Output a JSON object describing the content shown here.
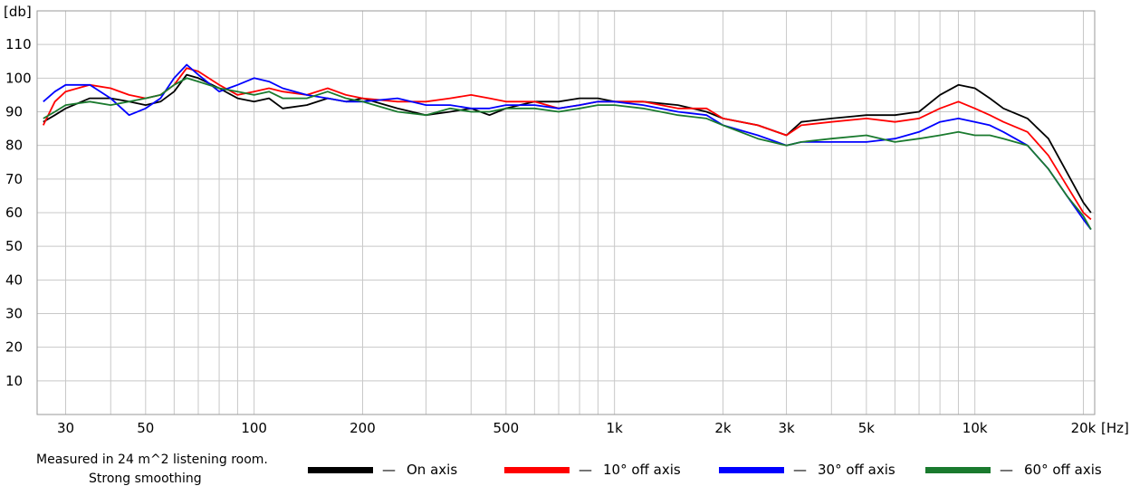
{
  "chart_data": {
    "type": "line",
    "x_scale": "log",
    "xlim": [
      25,
      21500
    ],
    "ylim": [
      0,
      120
    ],
    "xlabel": "[Hz]",
    "ylabel": "[db]",
    "grid": true,
    "legend_position": "bottom",
    "y_ticks": [
      10,
      20,
      30,
      40,
      50,
      60,
      70,
      80,
      90,
      100,
      110
    ],
    "x_ticks": [
      {
        "value": 30,
        "label": "30"
      },
      {
        "value": 50,
        "label": "50"
      },
      {
        "value": 100,
        "label": "100"
      },
      {
        "value": 200,
        "label": "200"
      },
      {
        "value": 500,
        "label": "500"
      },
      {
        "value": 1000,
        "label": "1k"
      },
      {
        "value": 2000,
        "label": "2k"
      },
      {
        "value": 3000,
        "label": "3k"
      },
      {
        "value": 5000,
        "label": "5k"
      },
      {
        "value": 10000,
        "label": "10k"
      },
      {
        "value": 20000,
        "label": "20k"
      }
    ],
    "series": [
      {
        "name": "On axis",
        "color": "#000000",
        "points": [
          [
            26,
            87
          ],
          [
            28,
            89
          ],
          [
            30,
            91
          ],
          [
            35,
            94
          ],
          [
            40,
            94
          ],
          [
            45,
            93
          ],
          [
            50,
            92
          ],
          [
            55,
            93
          ],
          [
            60,
            96
          ],
          [
            65,
            101
          ],
          [
            70,
            100
          ],
          [
            80,
            97
          ],
          [
            90,
            94
          ],
          [
            100,
            93
          ],
          [
            110,
            94
          ],
          [
            120,
            91
          ],
          [
            140,
            92
          ],
          [
            160,
            94
          ],
          [
            180,
            93
          ],
          [
            200,
            94
          ],
          [
            250,
            91
          ],
          [
            300,
            89
          ],
          [
            350,
            90
          ],
          [
            400,
            91
          ],
          [
            450,
            89
          ],
          [
            500,
            91
          ],
          [
            600,
            93
          ],
          [
            700,
            93
          ],
          [
            800,
            94
          ],
          [
            900,
            94
          ],
          [
            1000,
            93
          ],
          [
            1200,
            93
          ],
          [
            1500,
            92
          ],
          [
            1800,
            90
          ],
          [
            2000,
            88
          ],
          [
            2500,
            86
          ],
          [
            3000,
            83
          ],
          [
            3300,
            87
          ],
          [
            4000,
            88
          ],
          [
            5000,
            89
          ],
          [
            6000,
            89
          ],
          [
            7000,
            90
          ],
          [
            8000,
            95
          ],
          [
            9000,
            98
          ],
          [
            10000,
            97
          ],
          [
            11000,
            94
          ],
          [
            12000,
            91
          ],
          [
            14000,
            88
          ],
          [
            16000,
            82
          ],
          [
            18000,
            72
          ],
          [
            20000,
            63
          ],
          [
            21000,
            60
          ]
        ]
      },
      {
        "name": "10° off axis",
        "color": "#ff0000",
        "points": [
          [
            26,
            86
          ],
          [
            28,
            93
          ],
          [
            30,
            96
          ],
          [
            35,
            98
          ],
          [
            40,
            97
          ],
          [
            45,
            95
          ],
          [
            50,
            94
          ],
          [
            55,
            95
          ],
          [
            60,
            98
          ],
          [
            65,
            103
          ],
          [
            70,
            102
          ],
          [
            80,
            98
          ],
          [
            90,
            95
          ],
          [
            100,
            96
          ],
          [
            110,
            97
          ],
          [
            120,
            96
          ],
          [
            140,
            95
          ],
          [
            160,
            97
          ],
          [
            180,
            95
          ],
          [
            200,
            94
          ],
          [
            250,
            93
          ],
          [
            300,
            93
          ],
          [
            350,
            94
          ],
          [
            400,
            95
          ],
          [
            450,
            94
          ],
          [
            500,
            93
          ],
          [
            600,
            93
          ],
          [
            700,
            91
          ],
          [
            800,
            92
          ],
          [
            900,
            93
          ],
          [
            1000,
            93
          ],
          [
            1200,
            93
          ],
          [
            1500,
            91
          ],
          [
            1800,
            91
          ],
          [
            2000,
            88
          ],
          [
            2500,
            86
          ],
          [
            3000,
            83
          ],
          [
            3300,
            86
          ],
          [
            4000,
            87
          ],
          [
            5000,
            88
          ],
          [
            6000,
            87
          ],
          [
            7000,
            88
          ],
          [
            8000,
            91
          ],
          [
            9000,
            93
          ],
          [
            10000,
            91
          ],
          [
            11000,
            89
          ],
          [
            12000,
            87
          ],
          [
            14000,
            84
          ],
          [
            16000,
            77
          ],
          [
            18000,
            68
          ],
          [
            20000,
            60
          ],
          [
            21000,
            58
          ]
        ]
      },
      {
        "name": "30° off axis",
        "color": "#0000ff",
        "points": [
          [
            26,
            93
          ],
          [
            28,
            96
          ],
          [
            30,
            98
          ],
          [
            35,
            98
          ],
          [
            40,
            94
          ],
          [
            45,
            89
          ],
          [
            50,
            91
          ],
          [
            55,
            94
          ],
          [
            60,
            100
          ],
          [
            65,
            104
          ],
          [
            70,
            101
          ],
          [
            80,
            96
          ],
          [
            90,
            98
          ],
          [
            100,
            100
          ],
          [
            110,
            99
          ],
          [
            120,
            97
          ],
          [
            140,
            95
          ],
          [
            160,
            94
          ],
          [
            180,
            93
          ],
          [
            200,
            93
          ],
          [
            250,
            94
          ],
          [
            300,
            92
          ],
          [
            350,
            92
          ],
          [
            400,
            91
          ],
          [
            450,
            91
          ],
          [
            500,
            92
          ],
          [
            600,
            92
          ],
          [
            700,
            91
          ],
          [
            800,
            92
          ],
          [
            900,
            93
          ],
          [
            1000,
            93
          ],
          [
            1200,
            92
          ],
          [
            1500,
            90
          ],
          [
            1800,
            89
          ],
          [
            2000,
            86
          ],
          [
            2500,
            83
          ],
          [
            3000,
            80
          ],
          [
            3300,
            81
          ],
          [
            4000,
            81
          ],
          [
            5000,
            81
          ],
          [
            6000,
            82
          ],
          [
            7000,
            84
          ],
          [
            8000,
            87
          ],
          [
            9000,
            88
          ],
          [
            10000,
            87
          ],
          [
            11000,
            86
          ],
          [
            12000,
            84
          ],
          [
            14000,
            80
          ],
          [
            16000,
            73
          ],
          [
            18000,
            65
          ],
          [
            20000,
            58
          ],
          [
            21000,
            55
          ]
        ]
      },
      {
        "name": "60° off axis",
        "color": "#1a7a2e",
        "points": [
          [
            26,
            88
          ],
          [
            28,
            90
          ],
          [
            30,
            92
          ],
          [
            35,
            93
          ],
          [
            40,
            92
          ],
          [
            45,
            93
          ],
          [
            50,
            94
          ],
          [
            55,
            95
          ],
          [
            60,
            98
          ],
          [
            65,
            100
          ],
          [
            70,
            99
          ],
          [
            80,
            97
          ],
          [
            90,
            96
          ],
          [
            100,
            95
          ],
          [
            110,
            96
          ],
          [
            120,
            94
          ],
          [
            140,
            94
          ],
          [
            160,
            96
          ],
          [
            180,
            94
          ],
          [
            200,
            93
          ],
          [
            250,
            90
          ],
          [
            300,
            89
          ],
          [
            350,
            91
          ],
          [
            400,
            90
          ],
          [
            450,
            90
          ],
          [
            500,
            91
          ],
          [
            600,
            91
          ],
          [
            700,
            90
          ],
          [
            800,
            91
          ],
          [
            900,
            92
          ],
          [
            1000,
            92
          ],
          [
            1200,
            91
          ],
          [
            1500,
            89
          ],
          [
            1800,
            88
          ],
          [
            2000,
            86
          ],
          [
            2500,
            82
          ],
          [
            3000,
            80
          ],
          [
            3300,
            81
          ],
          [
            4000,
            82
          ],
          [
            5000,
            83
          ],
          [
            6000,
            81
          ],
          [
            7000,
            82
          ],
          [
            8000,
            83
          ],
          [
            9000,
            84
          ],
          [
            10000,
            83
          ],
          [
            11000,
            83
          ],
          [
            12000,
            82
          ],
          [
            14000,
            80
          ],
          [
            16000,
            73
          ],
          [
            18000,
            65
          ],
          [
            20000,
            59
          ],
          [
            21000,
            55
          ]
        ]
      }
    ]
  },
  "notes": {
    "line1": "Measured in 24 m^2 listening room.",
    "line2": "Strong smoothing"
  },
  "legend": {
    "dash": "—"
  }
}
